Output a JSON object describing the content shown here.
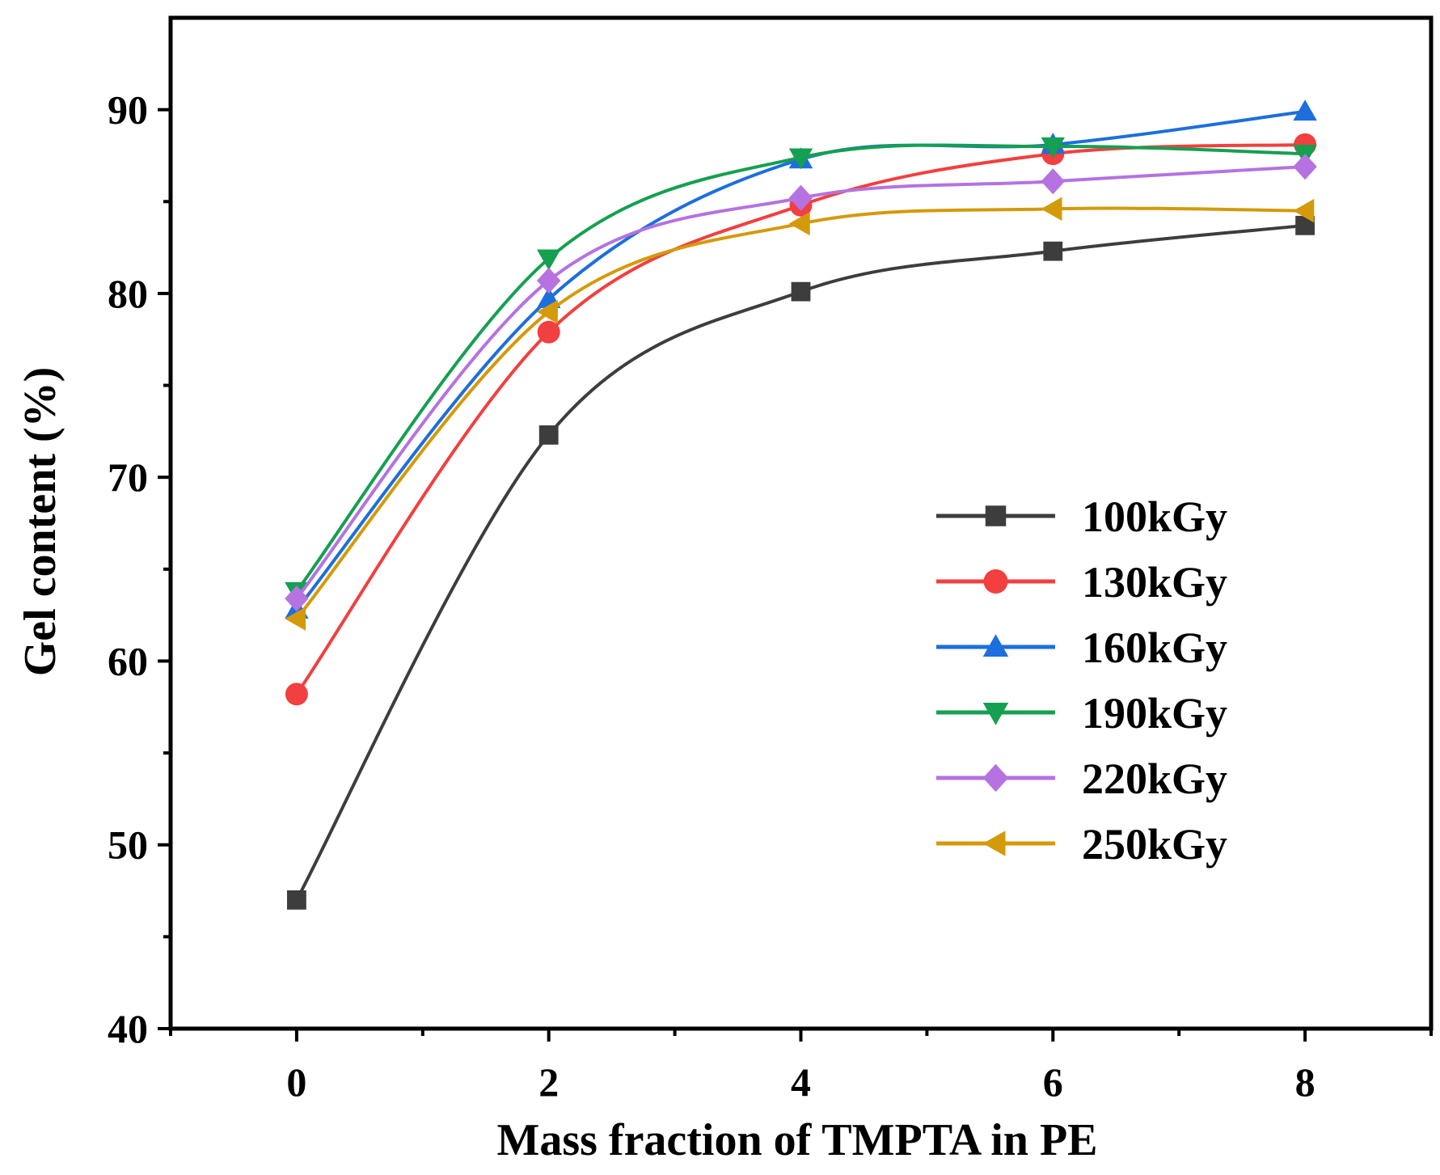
{
  "chart_data": {
    "type": "line",
    "title": "",
    "xlabel": "Mass fraction of TMPTA in PE",
    "ylabel": "Gel content (%)",
    "xlim": [
      -1,
      9
    ],
    "ylim": [
      40,
      95
    ],
    "x": [
      0,
      2,
      4,
      6,
      8
    ],
    "xticks": [
      "0",
      "2",
      "4",
      "6",
      "8"
    ],
    "yticks": [
      "40",
      "50",
      "60",
      "70",
      "80",
      "90"
    ],
    "grid": false,
    "legend_position": "center-right",
    "series": [
      {
        "name": "100kGy",
        "color": "#3d3d3d",
        "marker": "square",
        "values": [
          47.0,
          72.3,
          80.1,
          82.3,
          83.7
        ]
      },
      {
        "name": "130kGy",
        "color": "#f23f3f",
        "marker": "circle",
        "values": [
          58.2,
          77.9,
          84.8,
          87.6,
          88.1
        ]
      },
      {
        "name": "160kGy",
        "color": "#1c6fdc",
        "marker": "triangle-up",
        "values": [
          62.8,
          79.7,
          87.3,
          88.1,
          89.9
        ]
      },
      {
        "name": "190kGy",
        "color": "#14a050",
        "marker": "triangle-down",
        "values": [
          63.8,
          81.9,
          87.4,
          88.0,
          87.6
        ]
      },
      {
        "name": "220kGy",
        "color": "#b572e0",
        "marker": "diamond",
        "values": [
          63.4,
          80.7,
          85.2,
          86.1,
          86.9
        ]
      },
      {
        "name": "250kGy",
        "color": "#d49a0a",
        "marker": "triangle-left",
        "values": [
          62.3,
          79.0,
          83.8,
          84.6,
          84.5
        ]
      }
    ]
  }
}
